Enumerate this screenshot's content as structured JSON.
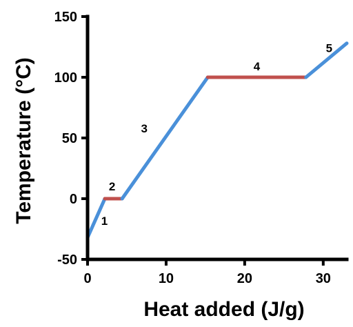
{
  "chart_data": {
    "type": "line",
    "title": "",
    "xlabel": "Heat added (J/g)",
    "ylabel": "Temperature (°C)",
    "xlim": [
      0,
      33
    ],
    "ylim": [
      -50,
      150
    ],
    "xticks": [
      "0",
      "10",
      "20",
      "30"
    ],
    "yticks": [
      "-50",
      "0",
      "50",
      "100",
      "150"
    ],
    "grid": false,
    "legend": "none",
    "segments": [
      {
        "label": "1",
        "color": "#4a90d9",
        "points": [
          [
            0,
            -32
          ],
          [
            2.2,
            0
          ]
        ]
      },
      {
        "label": "2",
        "color": "#c0504d",
        "points": [
          [
            2.2,
            0
          ],
          [
            4.4,
            0
          ]
        ]
      },
      {
        "label": "3",
        "color": "#4a90d9",
        "points": [
          [
            4.4,
            0
          ],
          [
            15.3,
            100
          ]
        ]
      },
      {
        "label": "4",
        "color": "#c0504d",
        "points": [
          [
            15.3,
            100
          ],
          [
            27.8,
            100
          ]
        ]
      },
      {
        "label": "5",
        "color": "#4a90d9",
        "points": [
          [
            27.8,
            100
          ],
          [
            33,
            128
          ]
        ]
      }
    ]
  }
}
